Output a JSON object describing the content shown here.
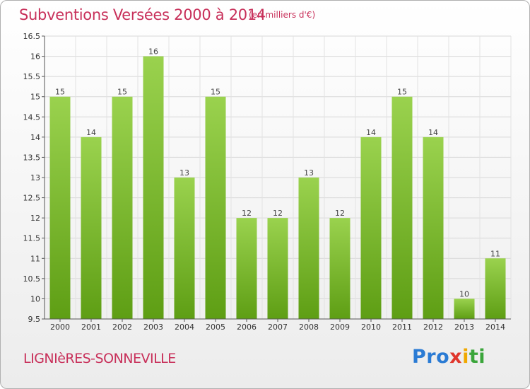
{
  "title": "Subventions Versées 2000 à 2014",
  "subtitle": "(en milliers d'€)",
  "commune": "LIGNIèRES-SONNEVILLE",
  "logo": {
    "text": "Proxiti"
  },
  "colors": {
    "accent": "#c8305a",
    "bar_top": "#9ad24e",
    "bar_bottom": "#5e9e14",
    "grid": "#d8d8d8"
  },
  "chart_data": {
    "type": "bar",
    "categories": [
      "2000",
      "2001",
      "2002",
      "2003",
      "2004",
      "2005",
      "2006",
      "2007",
      "2008",
      "2009",
      "2010",
      "2011",
      "2012",
      "2013",
      "2014"
    ],
    "values": [
      15,
      14,
      15,
      16,
      13,
      15,
      12,
      12,
      13,
      12,
      14,
      15,
      14,
      10,
      11
    ],
    "ylim": [
      9.5,
      16.5
    ],
    "yticks": [
      9.5,
      10,
      10.5,
      11,
      11.5,
      12,
      12.5,
      13,
      13.5,
      14,
      14.5,
      15,
      15.5,
      16,
      16.5
    ],
    "ytick_labels": [
      "9.5",
      "10",
      "10.5",
      "11",
      "11.5",
      "12",
      "12.5",
      "13",
      "13.5",
      "14",
      "14.5",
      "15",
      "15.5",
      "16",
      "16.5"
    ],
    "grid": true
  }
}
